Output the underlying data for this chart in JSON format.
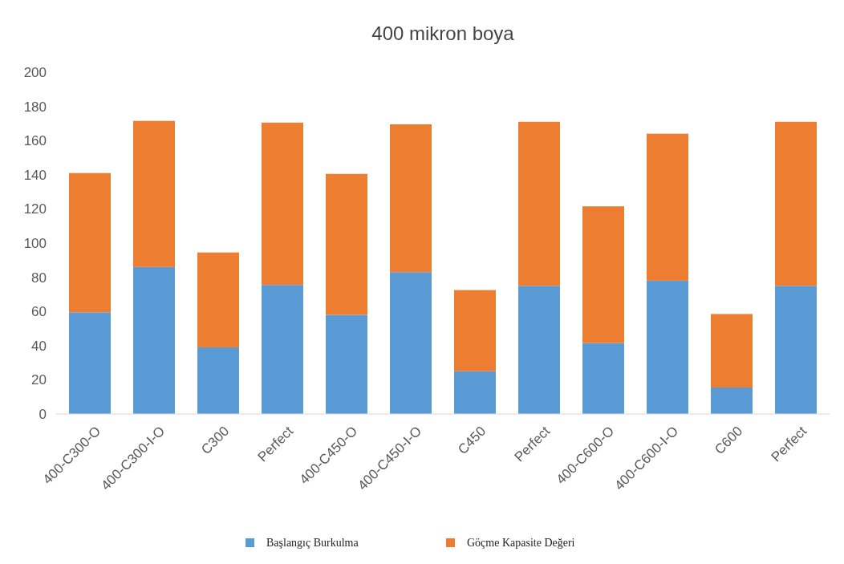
{
  "chart_data": {
    "type": "bar",
    "title": "400 mikron boya",
    "stacked": true,
    "categories": [
      "400-C300-O",
      "400-C300-I-O",
      "C300",
      "Perfect",
      "400-C450-O",
      "400-C450-I-O",
      "C450",
      "Perfect",
      "400-C600-O",
      "400-C600-I-O",
      "C600",
      "Perfect"
    ],
    "series": [
      {
        "name": "Başlangıç Burkulma",
        "color": "#5b9bd5",
        "values": [
          59.5,
          86,
          39,
          75.5,
          58,
          83,
          25,
          75,
          41.5,
          78,
          15.5,
          75
        ]
      },
      {
        "name": "Göçme Kapasite Değeri",
        "color": "#ed7d31",
        "values": [
          81.5,
          85.5,
          55.5,
          95,
          82.5,
          86.5,
          47.5,
          96,
          80,
          86,
          43,
          96
        ]
      }
    ],
    "ylim": [
      0,
      200
    ],
    "yticks": [
      0,
      20,
      40,
      60,
      80,
      100,
      120,
      140,
      160,
      180,
      200
    ],
    "grid": false,
    "legend": "bottom"
  }
}
